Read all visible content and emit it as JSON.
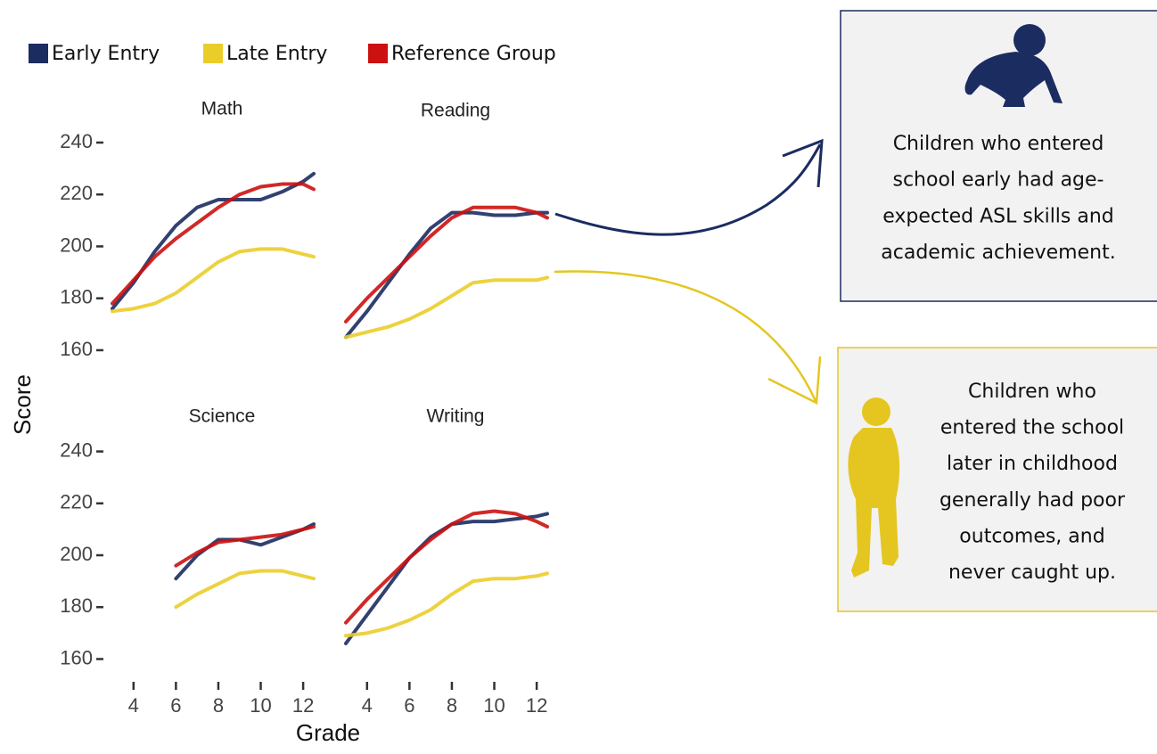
{
  "y_label": "Score",
  "x_label": "Grade",
  "chart_data": [
    {
      "type": "line",
      "title": "Math",
      "xlim": [
        3,
        12.5
      ],
      "ylim": [
        155,
        245
      ],
      "yticks": [
        160,
        180,
        200,
        220,
        240
      ],
      "x": [
        3,
        4,
        5,
        6,
        7,
        8,
        9,
        10,
        11,
        12,
        12.5
      ],
      "series": [
        {
          "name": "Early Entry",
          "color": "#1b2c61",
          "values": [
            176,
            186,
            198,
            208,
            215,
            218,
            218,
            218,
            221,
            225,
            228
          ]
        },
        {
          "name": "Late Entry",
          "color": "#ebcd2a",
          "values": [
            175,
            176,
            178,
            182,
            188,
            194,
            198,
            199,
            199,
            197,
            196
          ]
        },
        {
          "name": "Reference Group",
          "color": "#cc1111",
          "values": [
            178,
            187,
            196,
            203,
            209,
            215,
            220,
            223,
            224,
            224,
            222
          ]
        }
      ]
    },
    {
      "type": "line",
      "title": "Reading",
      "xlim": [
        3,
        12.5
      ],
      "ylim": [
        155,
        245
      ],
      "x": [
        3,
        4,
        5,
        6,
        7,
        8,
        9,
        10,
        11,
        12,
        12.5
      ],
      "series": [
        {
          "color": "#1b2c61",
          "values": [
            165,
            175,
            186,
            197,
            207,
            213,
            213,
            212,
            212,
            213,
            213
          ]
        },
        {
          "color": "#ebcd2a",
          "values": [
            165,
            167,
            169,
            172,
            176,
            181,
            186,
            187,
            187,
            187,
            188
          ]
        },
        {
          "color": "#cc1111",
          "values": [
            171,
            180,
            188,
            196,
            204,
            211,
            215,
            215,
            215,
            213,
            211
          ]
        }
      ]
    },
    {
      "type": "line",
      "title": "Science",
      "xlim": [
        3,
        12.5
      ],
      "ylim": [
        155,
        245
      ],
      "yticks": [
        160,
        180,
        200,
        220,
        240
      ],
      "xticks": [
        4,
        6,
        8,
        10,
        12
      ],
      "x": [
        6,
        7,
        8,
        9,
        10,
        11,
        12,
        12.5
      ],
      "series": [
        {
          "color": "#1b2c61",
          "values": [
            191,
            200,
            206,
            206,
            204,
            207,
            210,
            212
          ]
        },
        {
          "color": "#ebcd2a",
          "values": [
            180,
            185,
            189,
            193,
            194,
            194,
            192,
            191
          ]
        },
        {
          "color": "#cc1111",
          "values": [
            196,
            201,
            205,
            206,
            207,
            208,
            210,
            211
          ]
        }
      ]
    },
    {
      "type": "line",
      "title": "Writing",
      "xlim": [
        3,
        12.5
      ],
      "ylim": [
        155,
        245
      ],
      "xticks": [
        4,
        6,
        8,
        10,
        12
      ],
      "x": [
        3,
        4,
        5,
        6,
        7,
        8,
        9,
        10,
        11,
        12,
        12.5
      ],
      "series": [
        {
          "color": "#1b2c61",
          "values": [
            166,
            177,
            188,
            199,
            207,
            212,
            213,
            213,
            214,
            215,
            216
          ]
        },
        {
          "color": "#ebcd2a",
          "values": [
            169,
            170,
            172,
            175,
            179,
            185,
            190,
            191,
            191,
            192,
            193
          ]
        },
        {
          "color": "#cc1111",
          "values": [
            174,
            183,
            191,
            199,
            206,
            212,
            216,
            217,
            216,
            213,
            211
          ]
        }
      ]
    }
  ],
  "notes": [
    {
      "lines": [
        "Children who entered",
        "school early had age-",
        "expected ASL skills and",
        "academic achievement."
      ]
    },
    {
      "lines": [
        "Children who",
        "entered the school",
        "later in childhood",
        "generally had poor",
        "outcomes, and",
        "never caught up."
      ]
    }
  ]
}
